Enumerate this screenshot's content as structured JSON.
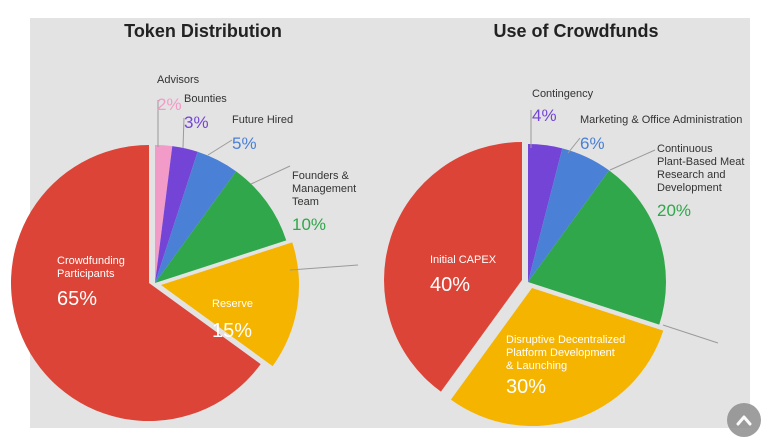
{
  "colors": {
    "red": "#db4437",
    "yellow": "#f4b400",
    "green": "#2fa74a",
    "blue": "#4a80d6",
    "purple": "#7444d6",
    "pink": "#f29ac8",
    "background": "#e3e3e3"
  },
  "chart_data": [
    {
      "type": "pie",
      "title": "Token Distribution",
      "slices": [
        {
          "label": "Crowdfunding Participants",
          "label_lines": [
            "Crowdfunding",
            "Participants"
          ],
          "value": 65,
          "pct_text": "65%",
          "color": "#db4437"
        },
        {
          "label": "Advisors",
          "label_lines": [
            "Advisors"
          ],
          "value": 2,
          "pct_text": "2%",
          "color": "#f29ac8"
        },
        {
          "label": "Bounties",
          "label_lines": [
            "Bounties"
          ],
          "value": 3,
          "pct_text": "3%",
          "color": "#7444d6"
        },
        {
          "label": "Future Hired",
          "label_lines": [
            "Future Hired"
          ],
          "value": 5,
          "pct_text": "5%",
          "color": "#4a80d6"
        },
        {
          "label": "Founders & Management Team",
          "label_lines": [
            "Founders &",
            "Management",
            "Team"
          ],
          "value": 10,
          "pct_text": "10%",
          "color": "#2fa74a"
        },
        {
          "label": "Reserve",
          "label_lines": [
            "Reserve"
          ],
          "value": 15,
          "pct_text": "15%",
          "color": "#f4b400"
        }
      ]
    },
    {
      "type": "pie",
      "title": "Use of Crowdfunds",
      "slices": [
        {
          "label": "Initial CAPEX",
          "label_lines": [
            "Initial CAPEX"
          ],
          "value": 40,
          "pct_text": "40%",
          "color": "#db4437"
        },
        {
          "label": "Contingency",
          "label_lines": [
            "Contingency"
          ],
          "value": 4,
          "pct_text": "4%",
          "color": "#7444d6"
        },
        {
          "label": "Marketing & Office Administration",
          "label_lines": [
            "Marketing & Office Administration"
          ],
          "value": 6,
          "pct_text": "6%",
          "color": "#4a80d6"
        },
        {
          "label": "Continuous Plant-Based Meat Research and Development",
          "label_lines": [
            "Continuous",
            "Plant-Based Meat",
            "Research and",
            "Development"
          ],
          "value": 20,
          "pct_text": "20%",
          "color": "#2fa74a"
        },
        {
          "label": "Disruptive Decentralized Platform Development & Launching",
          "label_lines": [
            "Disruptive Decentralized",
            "Platform Development",
            "& Launching"
          ],
          "value": 30,
          "pct_text": "30%",
          "color": "#f4b400"
        }
      ]
    }
  ],
  "scroll_button": {
    "icon": "chevron-up-icon"
  }
}
